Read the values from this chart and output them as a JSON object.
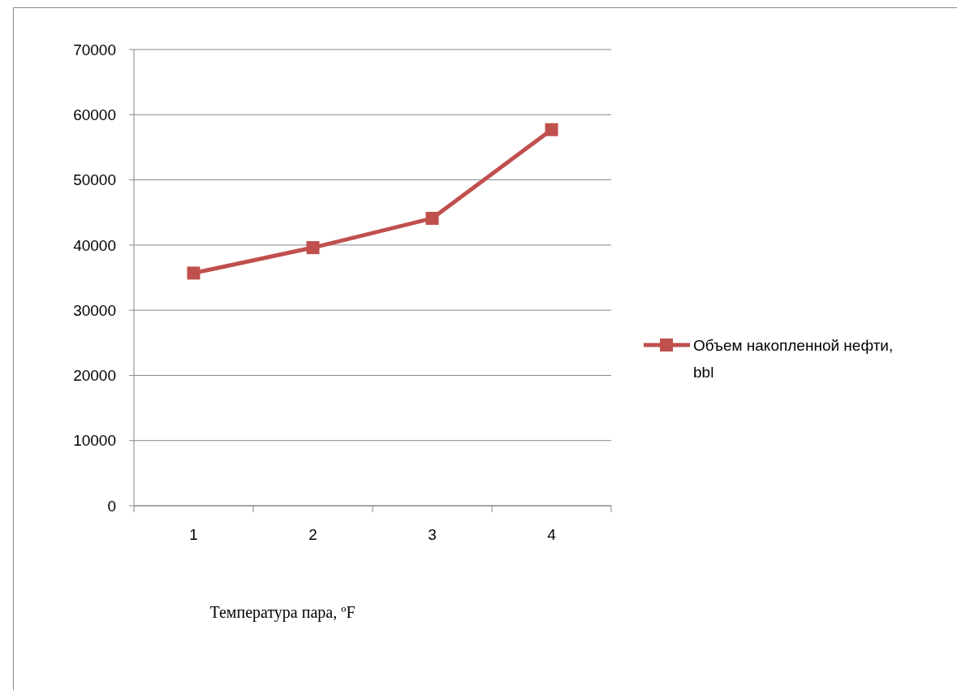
{
  "chart_data": {
    "type": "line",
    "xlabel": "Температура пара, ºF",
    "categories": [
      "1",
      "2",
      "3",
      "4"
    ],
    "series": [
      {
        "name": "Объем накопленной нефти, bbl",
        "color": "#c0504d",
        "values": [
          35700,
          39600,
          44100,
          57700
        ]
      }
    ],
    "ylim": [
      0,
      70000
    ],
    "yticks": [
      0,
      10000,
      20000,
      30000,
      40000,
      50000,
      60000,
      70000
    ],
    "grid": "y",
    "legend": "right",
    "marker": "square",
    "line_style": "solid"
  }
}
